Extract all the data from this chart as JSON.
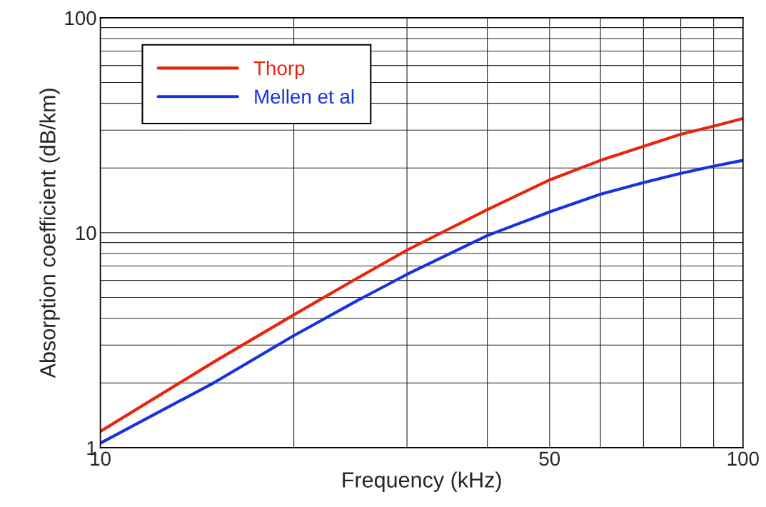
{
  "chart_data": {
    "type": "line",
    "xlabel": "Frequency (kHz)",
    "ylabel": "Absorption coefficient (dB/km)",
    "x": [
      10,
      15,
      20,
      25,
      30,
      40,
      50,
      60,
      70,
      80,
      90,
      100
    ],
    "series": [
      {
        "name": "Thorp",
        "color": "#e8250c",
        "values": [
          1.19,
          2.5,
          4.15,
          6.1,
          8.3,
          12.8,
          17.6,
          21.7,
          25.2,
          28.7,
          31.3,
          34.0
        ]
      },
      {
        "name": "Mellen et al",
        "color": "#1733e0",
        "values": [
          1.05,
          2.0,
          3.32,
          4.8,
          6.4,
          9.7,
          12.5,
          15.1,
          17.1,
          18.9,
          20.4,
          21.7
        ]
      }
    ],
    "log": "xy",
    "xlim": [
      10,
      100
    ],
    "ylim": [
      1,
      100
    ],
    "xticks": [
      10,
      {
        "value": 20,
        "label": null
      },
      {
        "value": 30,
        "label": null
      },
      {
        "value": 40,
        "label": null
      },
      50,
      {
        "value": 60,
        "label": null
      },
      {
        "value": 70,
        "label": null
      },
      {
        "value": 80,
        "label": null
      },
      {
        "value": 90,
        "label": null
      },
      100
    ],
    "yticks": [
      1,
      {
        "value": 2,
        "label": null
      },
      {
        "value": 3,
        "label": null
      },
      {
        "value": 4,
        "label": null
      },
      {
        "value": 5,
        "label": null
      },
      {
        "value": 6,
        "label": null
      },
      {
        "value": 7,
        "label": null
      },
      {
        "value": 8,
        "label": null
      },
      {
        "value": 9,
        "label": null
      },
      10,
      {
        "value": 20,
        "label": null
      },
      {
        "value": 30,
        "label": null
      },
      {
        "value": 40,
        "label": null
      },
      {
        "value": 50,
        "label": null
      },
      {
        "value": 60,
        "label": null
      },
      {
        "value": 70,
        "label": null
      },
      {
        "value": 80,
        "label": null
      },
      {
        "value": 90,
        "label": null
      },
      100
    ],
    "grid": true,
    "legend": "top left",
    "line_style": "solid",
    "marker": "none"
  }
}
